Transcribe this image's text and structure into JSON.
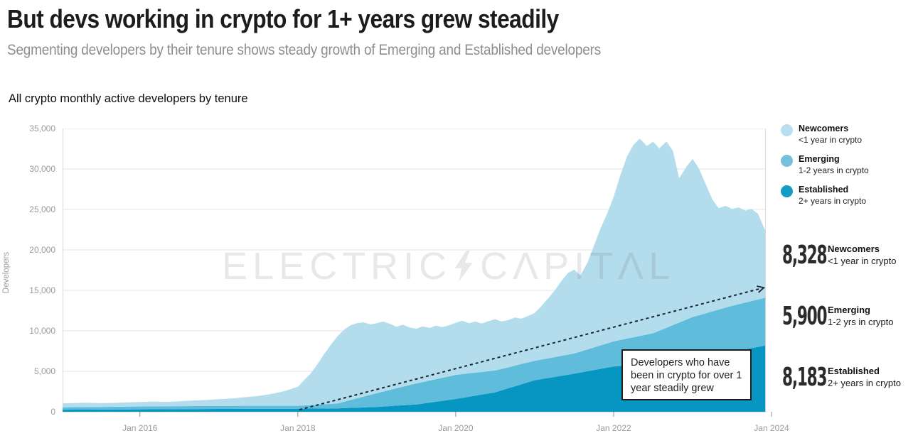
{
  "header": {
    "title": "But devs working in crypto for 1+ years grew steadily",
    "subtitle": "Segmenting developers by their tenure shows steady growth of Emerging and Established developers"
  },
  "section_title": "All crypto monthly active developers by tenure",
  "watermark": {
    "left": "ELECTRIC",
    "right": "CΛPITΛL"
  },
  "annotation_text": "Developers who have\nbeen in crypto for over 1\nyear steadily grew",
  "legend": [
    {
      "name": "Newcomers",
      "desc": "<1 year in crypto",
      "color": "#b9dff0"
    },
    {
      "name": "Emerging",
      "desc": "1-2 years in crypto",
      "color": "#74c0dd"
    },
    {
      "name": "Established",
      "desc": "2+ years in crypto",
      "color": "#149bc6"
    }
  ],
  "stat_boxes": [
    {
      "value": "8,328",
      "name": "Newcomers",
      "desc": "<1 year in crypto",
      "border_color": "#b9dff0",
      "border_width": "2px"
    },
    {
      "value": "5,900",
      "name": "Emerging",
      "desc": "1-2 yrs in crypto",
      "border_color": "#74c0dd",
      "border_width": "2px"
    },
    {
      "value": "8,183",
      "name": "Established",
      "desc": "2+ years in crypto",
      "border_color": "#0a95c0",
      "border_width": "3px"
    }
  ],
  "chart_data": {
    "type": "area",
    "stacked": true,
    "title": "All crypto monthly active developers by tenure",
    "ylabel": "Developers",
    "xlabel": "",
    "ylim": [
      0,
      35000
    ],
    "xlim": [
      2015.02,
      2024.0
    ],
    "grid": "horizontal",
    "legend_position": "right",
    "yticks": [
      {
        "label": "0",
        "value": 0
      },
      {
        "label": "5,000",
        "value": 5000
      },
      {
        "label": "10,000",
        "value": 10000
      },
      {
        "label": "15,000",
        "value": 15000
      },
      {
        "label": "20,000",
        "value": 20000
      },
      {
        "label": "25,000",
        "value": 25000
      },
      {
        "label": "30,000",
        "value": 30000
      },
      {
        "label": "35,000",
        "value": 35000
      }
    ],
    "xticks": [
      {
        "label": "Jan 2016",
        "t": 2016
      },
      {
        "label": "Jan 2018",
        "t": 2018
      },
      {
        "label": "Jan 2020",
        "t": 2020
      },
      {
        "label": "Jan 2022",
        "t": 2022
      },
      {
        "label": "Jan 2024",
        "t": 2024
      }
    ],
    "x": [
      2015.0,
      2015.17,
      2015.33,
      2015.5,
      2015.67,
      2015.83,
      2016.0,
      2016.17,
      2016.33,
      2016.5,
      2016.67,
      2016.83,
      2017.0,
      2017.17,
      2017.33,
      2017.5,
      2017.67,
      2017.83,
      2018.0,
      2018.08,
      2018.17,
      2018.25,
      2018.33,
      2018.42,
      2018.5,
      2018.58,
      2018.67,
      2018.75,
      2018.83,
      2018.92,
      2019.0,
      2019.08,
      2019.17,
      2019.25,
      2019.33,
      2019.42,
      2019.5,
      2019.58,
      2019.67,
      2019.75,
      2019.83,
      2019.92,
      2020.0,
      2020.08,
      2020.17,
      2020.25,
      2020.33,
      2020.42,
      2020.5,
      2020.58,
      2020.67,
      2020.75,
      2020.83,
      2020.92,
      2021.0,
      2021.08,
      2021.17,
      2021.25,
      2021.33,
      2021.42,
      2021.5,
      2021.58,
      2021.67,
      2021.75,
      2021.83,
      2021.92,
      2022.0,
      2022.08,
      2022.17,
      2022.25,
      2022.33,
      2022.42,
      2022.5,
      2022.58,
      2022.67,
      2022.75,
      2022.83,
      2022.92,
      2023.0,
      2023.08,
      2023.17,
      2023.25,
      2023.33,
      2023.42,
      2023.5,
      2023.58,
      2023.67,
      2023.75,
      2023.83,
      2023.92
    ],
    "series": [
      {
        "name": "Established",
        "desc": "2+ years in crypto",
        "color": "#0795c1",
        "values": [
          250,
          259,
          267,
          275,
          284,
          292,
          300,
          309,
          317,
          325,
          334,
          342,
          350,
          355,
          360,
          365,
          370,
          375,
          380,
          386,
          394,
          400,
          406,
          414,
          420,
          449,
          481,
          510,
          539,
          571,
          600,
          648,
          702,
          750,
          798,
          852,
          900,
          1009,
          1131,
          1240,
          1349,
          1471,
          1580,
          1711,
          1859,
          1990,
          2121,
          2269,
          2400,
          2640,
          2910,
          3150,
          3390,
          3660,
          3900,
          4028,
          4172,
          4300,
          4428,
          4572,
          4700,
          4844,
          5006,
          5150,
          5294,
          5456,
          5600,
          5648,
          5702,
          5750,
          5798,
          5852,
          5900,
          5996,
          6104,
          6200,
          6296,
          6404,
          6500,
          6644,
          6806,
          6950,
          7094,
          7256,
          7400,
          7549,
          7717,
          7866,
          8015,
          8183
        ]
      },
      {
        "name": "Emerging",
        "desc": "1-2 years in crypto",
        "color": "#5fbddb",
        "values": [
          300,
          309,
          317,
          325,
          334,
          342,
          350,
          355,
          360,
          365,
          370,
          375,
          380,
          377,
          373,
          370,
          367,
          363,
          360,
          398,
          442,
          480,
          518,
          562,
          600,
          776,
          974,
          1150,
          1326,
          1524,
          1700,
          1844,
          2006,
          2150,
          2294,
          2456,
          2600,
          2661,
          2729,
          2790,
          2851,
          2919,
          2980,
          2935,
          2885,
          2840,
          2795,
          2745,
          2700,
          2652,
          2598,
          2550,
          2502,
          2448,
          2400,
          2416,
          2434,
          2450,
          2466,
          2484,
          2500,
          2596,
          2704,
          2800,
          2896,
          3004,
          3100,
          3212,
          3338,
          3450,
          3562,
          3688,
          3800,
          4024,
          4276,
          4500,
          4724,
          4976,
          5200,
          5280,
          5370,
          5450,
          5530,
          5620,
          5700,
          5738,
          5781,
          5819,
          5857,
          5900
        ]
      },
      {
        "name": "Newcomers",
        "desc": "<1 year in crypto",
        "color": "#b3dcec",
        "values": [
          500,
          512,
          536,
          460,
          482,
          516,
          550,
          596,
          543,
          610,
          676,
          733,
          820,
          918,
          1067,
          1215,
          1463,
          1812,
          2360,
          3116,
          3964,
          5020,
          6176,
          7324,
          8280,
          8875,
          9245,
          9290,
          9185,
          8705,
          8650,
          8658,
          8142,
          7600,
          7658,
          7092,
          6750,
          6880,
          6490,
          6620,
          6250,
          6310,
          6440,
          6604,
          6206,
          6320,
          5984,
          6186,
          6350,
          5858,
          5842,
          5950,
          5608,
          5742,
          5900,
          6556,
          7394,
          8200,
          9156,
          10094,
          10350,
          9410,
          10740,
          12550,
          14360,
          16090,
          17850,
          20190,
          22510,
          23750,
          24390,
          23310,
          23650,
          22530,
          23020,
          21550,
          17830,
          18870,
          19550,
          18126,
          15874,
          13850,
          12526,
          12574,
          11950,
          11963,
          11352,
          11365,
          10578,
          8328
        ]
      }
    ],
    "trendline": {
      "x1": 2018.02,
      "v1": 250,
      "x2": 2023.85,
      "v2": 15200,
      "style": "dashed-arrow",
      "color": "#16262e"
    },
    "latest_values": {
      "Newcomers": 8328,
      "Emerging": 5900,
      "Established": 8183
    }
  }
}
